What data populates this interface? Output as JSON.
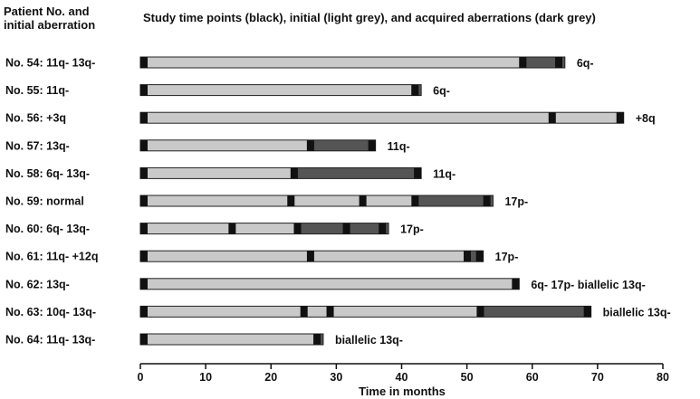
{
  "chart_data": {
    "type": "bar",
    "left_header": "Patient No. and\ninitial aberration",
    "title": "Study time points (black), initial (light grey), and acquired aberrations (dark grey)",
    "xlabel": "Time in months",
    "xlim": [
      0,
      80
    ],
    "xticks": [
      0,
      10,
      20,
      30,
      40,
      50,
      60,
      70,
      80
    ],
    "colors": {
      "timepoint": "#111111",
      "initial": "#c9c9c9",
      "acquired": "#555555",
      "outline": "#222222"
    },
    "legend": {
      "timepoint": "black",
      "initial": "light grey",
      "acquired": "dark grey"
    },
    "patients": [
      {
        "label": "No. 54: 11q- 13q-",
        "end": 65,
        "acquired_from": 58,
        "timepoints": [
          0,
          58,
          63.5
        ],
        "annotation": "6q-"
      },
      {
        "label": "No. 55: 11q-",
        "end": 43,
        "acquired_from": 41.5,
        "timepoints": [
          0,
          41.5
        ],
        "annotation": "6q-"
      },
      {
        "label": "No. 56: +3q",
        "end": 74,
        "acquired_from": 73,
        "timepoints": [
          0,
          62.5,
          73
        ],
        "annotation": "+8q"
      },
      {
        "label": "No. 57: 13q-",
        "end": 36,
        "acquired_from": 25.5,
        "timepoints": [
          0,
          25.5,
          35
        ],
        "annotation": "11q-"
      },
      {
        "label": "No. 58: 6q- 13q-",
        "end": 43,
        "acquired_from": 23,
        "timepoints": [
          0,
          23,
          42
        ],
        "annotation": "11q-"
      },
      {
        "label": "No. 59: normal",
        "end": 54,
        "acquired_from": 42,
        "timepoints": [
          0,
          22.5,
          33.5,
          41.5,
          52.5
        ],
        "annotation": "17p-"
      },
      {
        "label": "No. 60: 6q- 13q-",
        "end": 38,
        "acquired_from": 23.5,
        "timepoints": [
          0,
          13.5,
          23.5,
          31,
          36.5
        ],
        "annotation": "17p-"
      },
      {
        "label": "No. 61: 11q- +12q",
        "end": 52.5,
        "acquired_from": 49.5,
        "timepoints": [
          0,
          25.5,
          49.5,
          51.5
        ],
        "annotation": "17p-"
      },
      {
        "label": "No. 62: 13q-",
        "end": 58,
        "acquired_from": 57,
        "timepoints": [
          0,
          57
        ],
        "annotation": "6q-  17p-  biallelic 13q-"
      },
      {
        "label": "No. 63: 10q- 13q-",
        "end": 69,
        "acquired_from": 51.5,
        "timepoints": [
          0,
          24.5,
          28.5,
          51.5,
          68
        ],
        "annotation": "biallelic 13q-"
      },
      {
        "label": "No. 64: 11q- 13q-",
        "end": 28,
        "acquired_from": 26.5,
        "timepoints": [
          0,
          26.5
        ],
        "annotation": "biallelic 13q-"
      }
    ]
  }
}
